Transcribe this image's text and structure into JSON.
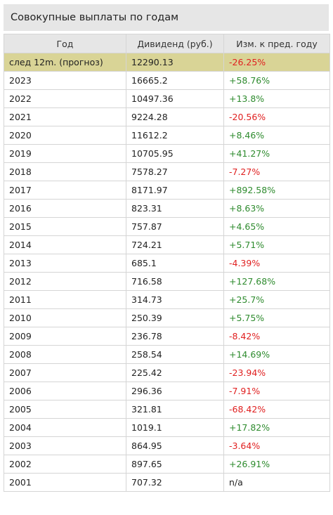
{
  "title": "Совокупные выплаты по годам",
  "colors": {
    "header_bg": "#e6e6e6",
    "forecast_bg": "#d9d496",
    "positive": "#2e8b2e",
    "negative": "#e02020"
  },
  "table": {
    "headers": [
      "Год",
      "Дивиденд (руб.)",
      "Изм. к пред. году"
    ],
    "rows": [
      {
        "year": "след 12m. (прогноз)",
        "dividend": "12290.13",
        "change": "-26.25%",
        "trend": "neg",
        "highlight": true
      },
      {
        "year": "2023",
        "dividend": "16665.2",
        "change": "+58.76%",
        "trend": "pos"
      },
      {
        "year": "2022",
        "dividend": "10497.36",
        "change": "+13.8%",
        "trend": "pos"
      },
      {
        "year": "2021",
        "dividend": "9224.28",
        "change": "-20.56%",
        "trend": "neg"
      },
      {
        "year": "2020",
        "dividend": "11612.2",
        "change": "+8.46%",
        "trend": "pos"
      },
      {
        "year": "2019",
        "dividend": "10705.95",
        "change": "+41.27%",
        "trend": "pos"
      },
      {
        "year": "2018",
        "dividend": "7578.27",
        "change": "-7.27%",
        "trend": "neg"
      },
      {
        "year": "2017",
        "dividend": "8171.97",
        "change": "+892.58%",
        "trend": "pos"
      },
      {
        "year": "2016",
        "dividend": "823.31",
        "change": "+8.63%",
        "trend": "pos"
      },
      {
        "year": "2015",
        "dividend": "757.87",
        "change": "+4.65%",
        "trend": "pos"
      },
      {
        "year": "2014",
        "dividend": "724.21",
        "change": "+5.71%",
        "trend": "pos"
      },
      {
        "year": "2013",
        "dividend": "685.1",
        "change": "-4.39%",
        "trend": "neg"
      },
      {
        "year": "2012",
        "dividend": "716.58",
        "change": "+127.68%",
        "trend": "pos"
      },
      {
        "year": "2011",
        "dividend": "314.73",
        "change": "+25.7%",
        "trend": "pos"
      },
      {
        "year": "2010",
        "dividend": "250.39",
        "change": "+5.75%",
        "trend": "pos"
      },
      {
        "year": "2009",
        "dividend": "236.78",
        "change": "-8.42%",
        "trend": "neg"
      },
      {
        "year": "2008",
        "dividend": "258.54",
        "change": "+14.69%",
        "trend": "pos"
      },
      {
        "year": "2007",
        "dividend": "225.42",
        "change": "-23.94%",
        "trend": "neg"
      },
      {
        "year": "2006",
        "dividend": "296.36",
        "change": "-7.91%",
        "trend": "neg"
      },
      {
        "year": "2005",
        "dividend": "321.81",
        "change": "-68.42%",
        "trend": "neg"
      },
      {
        "year": "2004",
        "dividend": "1019.1",
        "change": "+17.82%",
        "trend": "pos"
      },
      {
        "year": "2003",
        "dividend": "864.95",
        "change": "-3.64%",
        "trend": "neg"
      },
      {
        "year": "2002",
        "dividend": "897.65",
        "change": "+26.91%",
        "trend": "pos"
      },
      {
        "year": "2001",
        "dividend": "707.32",
        "change": "n/a",
        "trend": "na"
      }
    ]
  }
}
